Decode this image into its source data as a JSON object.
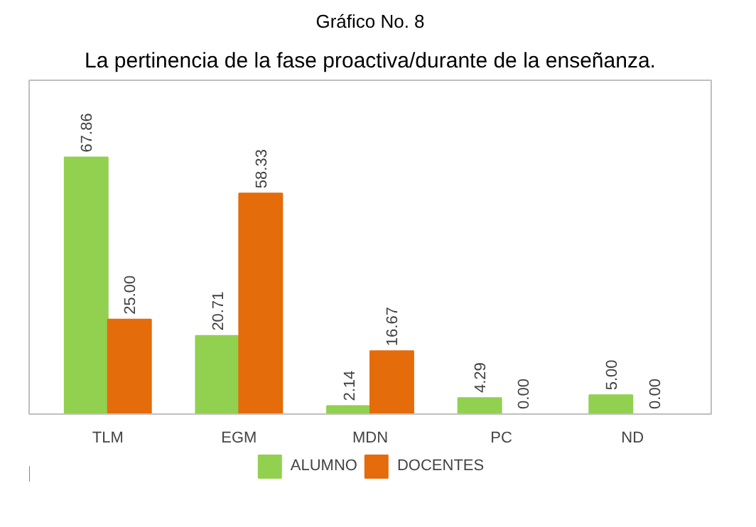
{
  "chart_data": {
    "type": "bar",
    "title": "La pertinencia de la fase proactiva/durante de la enseñanza.",
    "annotations": [
      "Gráfico No. 8"
    ],
    "categories": [
      "TLM",
      "EGM",
      "MDN",
      "PC",
      "ND"
    ],
    "series": [
      {
        "name": "ALUMNO",
        "color": "#92d050",
        "values": [
          67.86,
          20.71,
          2.14,
          4.29,
          5.0
        ],
        "value_labels": [
          "67.86",
          "20.71",
          "2.14",
          "4.29",
          "5.00"
        ]
      },
      {
        "name": "DOCENTES",
        "color": "#e46c0a",
        "values": [
          25.0,
          58.33,
          16.67,
          0.0,
          0.0
        ],
        "value_labels": [
          "25.00",
          "58.33",
          "16.67",
          "0.00",
          "0.00"
        ]
      }
    ],
    "legend": "bottom"
  }
}
